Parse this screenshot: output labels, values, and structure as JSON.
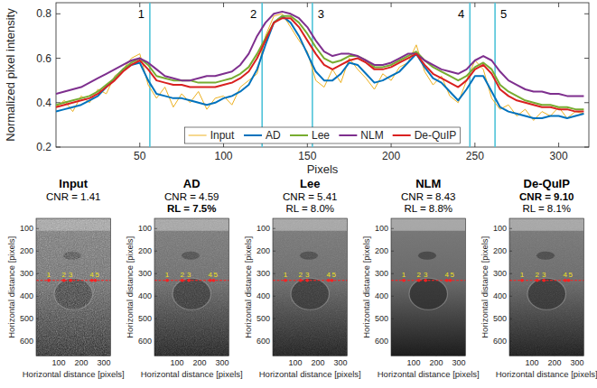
{
  "chart_data": [
    {
      "type": "line",
      "x_label": "Pixels",
      "y_label": "Normalized pixel intensity",
      "x": [
        0,
        5,
        10,
        15,
        20,
        25,
        30,
        35,
        40,
        45,
        50,
        55,
        60,
        65,
        70,
        75,
        80,
        85,
        90,
        95,
        100,
        105,
        110,
        115,
        120,
        125,
        130,
        135,
        140,
        145,
        150,
        155,
        160,
        165,
        170,
        175,
        180,
        185,
        190,
        195,
        200,
        205,
        210,
        215,
        220,
        225,
        230,
        235,
        240,
        245,
        250,
        255,
        260,
        265,
        270,
        275,
        280,
        285,
        290,
        295,
        300,
        305,
        310,
        315
      ],
      "xlim": [
        0,
        318
      ],
      "ylim": [
        0.2,
        0.85
      ],
      "xticks": [
        50,
        100,
        150,
        200,
        250,
        300
      ],
      "yticks": [
        0.2,
        0.4,
        0.6,
        0.8
      ],
      "legend": "bottom",
      "series": [
        {
          "name": "Input",
          "color": "#EDB120",
          "values": [
            0.38,
            0.41,
            0.36,
            0.43,
            0.4,
            0.46,
            0.44,
            0.52,
            0.55,
            0.6,
            0.62,
            0.48,
            0.42,
            0.47,
            0.38,
            0.44,
            0.4,
            0.45,
            0.37,
            0.42,
            0.43,
            0.39,
            0.47,
            0.5,
            0.53,
            0.7,
            0.79,
            0.8,
            0.74,
            0.68,
            0.63,
            0.5,
            0.47,
            0.55,
            0.49,
            0.6,
            0.55,
            0.51,
            0.46,
            0.53,
            0.5,
            0.56,
            0.58,
            0.66,
            0.54,
            0.48,
            0.52,
            0.43,
            0.4,
            0.5,
            0.59,
            0.55,
            0.42,
            0.37,
            0.39,
            0.34,
            0.37,
            0.32,
            0.36,
            0.34,
            0.38,
            0.33,
            0.36,
            0.35
          ]
        },
        {
          "name": "AD",
          "color": "#0072BD",
          "values": [
            0.36,
            0.37,
            0.38,
            0.39,
            0.41,
            0.43,
            0.47,
            0.51,
            0.55,
            0.57,
            0.58,
            0.5,
            0.44,
            0.43,
            0.42,
            0.42,
            0.41,
            0.4,
            0.39,
            0.4,
            0.42,
            0.43,
            0.45,
            0.48,
            0.55,
            0.66,
            0.76,
            0.79,
            0.76,
            0.7,
            0.62,
            0.54,
            0.5,
            0.5,
            0.53,
            0.58,
            0.57,
            0.53,
            0.49,
            0.5,
            0.52,
            0.54,
            0.58,
            0.62,
            0.56,
            0.51,
            0.49,
            0.45,
            0.41,
            0.46,
            0.52,
            0.52,
            0.45,
            0.38,
            0.36,
            0.35,
            0.34,
            0.33,
            0.33,
            0.34,
            0.34,
            0.33,
            0.34,
            0.35
          ]
        },
        {
          "name": "Lee",
          "color": "#77AC30",
          "values": [
            0.39,
            0.4,
            0.41,
            0.42,
            0.43,
            0.45,
            0.48,
            0.51,
            0.55,
            0.58,
            0.6,
            0.57,
            0.52,
            0.51,
            0.5,
            0.5,
            0.5,
            0.49,
            0.49,
            0.49,
            0.5,
            0.51,
            0.53,
            0.56,
            0.62,
            0.69,
            0.76,
            0.79,
            0.79,
            0.76,
            0.71,
            0.65,
            0.6,
            0.58,
            0.59,
            0.61,
            0.61,
            0.59,
            0.56,
            0.56,
            0.57,
            0.59,
            0.61,
            0.63,
            0.59,
            0.56,
            0.54,
            0.52,
            0.5,
            0.52,
            0.56,
            0.58,
            0.55,
            0.48,
            0.45,
            0.43,
            0.41,
            0.4,
            0.39,
            0.39,
            0.38,
            0.38,
            0.37,
            0.37
          ]
        },
        {
          "name": "NLM",
          "color": "#7E2F8E",
          "values": [
            0.44,
            0.45,
            0.46,
            0.47,
            0.49,
            0.51,
            0.53,
            0.55,
            0.57,
            0.59,
            0.6,
            0.58,
            0.55,
            0.52,
            0.51,
            0.5,
            0.5,
            0.51,
            0.52,
            0.52,
            0.53,
            0.54,
            0.57,
            0.62,
            0.7,
            0.76,
            0.8,
            0.81,
            0.8,
            0.78,
            0.74,
            0.68,
            0.63,
            0.61,
            0.62,
            0.62,
            0.61,
            0.59,
            0.57,
            0.57,
            0.58,
            0.6,
            0.62,
            0.62,
            0.59,
            0.57,
            0.55,
            0.54,
            0.53,
            0.55,
            0.59,
            0.61,
            0.59,
            0.54,
            0.5,
            0.48,
            0.46,
            0.45,
            0.45,
            0.44,
            0.44,
            0.43,
            0.43,
            0.43
          ]
        },
        {
          "name": "De-QuIP",
          "color": "#D92020",
          "values": [
            0.38,
            0.39,
            0.4,
            0.41,
            0.42,
            0.44,
            0.47,
            0.5,
            0.54,
            0.57,
            0.59,
            0.55,
            0.5,
            0.49,
            0.48,
            0.48,
            0.47,
            0.47,
            0.47,
            0.47,
            0.48,
            0.49,
            0.51,
            0.54,
            0.6,
            0.68,
            0.76,
            0.78,
            0.78,
            0.74,
            0.68,
            0.62,
            0.57,
            0.55,
            0.57,
            0.59,
            0.6,
            0.58,
            0.55,
            0.55,
            0.56,
            0.58,
            0.6,
            0.62,
            0.57,
            0.53,
            0.51,
            0.49,
            0.47,
            0.5,
            0.55,
            0.57,
            0.53,
            0.46,
            0.43,
            0.41,
            0.4,
            0.39,
            0.38,
            0.38,
            0.37,
            0.37,
            0.36,
            0.36
          ]
        }
      ],
      "vlines": [
        {
          "x": 56,
          "label": "1"
        },
        {
          "x": 123,
          "label": "2"
        },
        {
          "x": 153,
          "label": "3"
        },
        {
          "x": 247,
          "label": "4"
        },
        {
          "x": 262,
          "label": "5"
        }
      ]
    },
    {
      "type": "image",
      "title": "Input",
      "cnr": {
        "value": 1.41,
        "label": "CNR = 1.41"
      },
      "xlim": [
        0,
        330
      ],
      "ylim": [
        55,
        665
      ],
      "xticks": [
        100,
        200,
        300
      ],
      "yticks": [
        100,
        200,
        300,
        400,
        500,
        600
      ],
      "x_label": "Horizontal distance [pixels]",
      "y_label": "Horizontal distance [pixels]",
      "profile_row": 330
    },
    {
      "type": "image",
      "title": "AD",
      "cnr": {
        "value": 4.59,
        "label": "CNR = 4.59"
      },
      "rl": {
        "value": 7.5,
        "label": "RL = 7.5%"
      },
      "xlim": [
        0,
        330
      ],
      "ylim": [
        55,
        665
      ],
      "xticks": [
        100,
        200,
        300
      ],
      "yticks": [
        100,
        200,
        300,
        400,
        500,
        600
      ],
      "x_label": "Horizontal distance [pixels]",
      "y_label": "Horizontal distance [pixels]",
      "profile_row": 330
    },
    {
      "type": "image",
      "title": "Lee",
      "cnr": {
        "value": 5.41,
        "label": "CNR = 5.41"
      },
      "rl": {
        "value": 8.0,
        "label": "RL = 8.0%"
      },
      "xlim": [
        0,
        330
      ],
      "ylim": [
        55,
        665
      ],
      "xticks": [
        100,
        200,
        300
      ],
      "yticks": [
        100,
        200,
        300,
        400,
        500,
        600
      ],
      "x_label": "Horizontal distance [pixels]",
      "y_label": "Horizontal distance [pixels]",
      "profile_row": 330
    },
    {
      "type": "image",
      "title": "NLM",
      "cnr": {
        "value": 8.43,
        "label": "CNR = 8.43"
      },
      "rl": {
        "value": 8.8,
        "label": "RL = 8.8%"
      },
      "xlim": [
        0,
        330
      ],
      "ylim": [
        55,
        665
      ],
      "xticks": [
        100,
        200,
        300
      ],
      "yticks": [
        100,
        200,
        300,
        400,
        500,
        600
      ],
      "x_label": "Horizontal distance [pixels]",
      "y_label": "Horizontal distance [pixels]",
      "profile_row": 330
    },
    {
      "type": "image",
      "title": "De-QuIP",
      "cnr": {
        "value": 9.1,
        "label": "CNR = 9.10"
      },
      "rl": {
        "value": 8.1,
        "label": "RL = 8.1%"
      },
      "xlim": [
        0,
        330
      ],
      "ylim": [
        55,
        665
      ],
      "xticks": [
        100,
        200,
        300
      ],
      "yticks": [
        100,
        200,
        300,
        400,
        500,
        600
      ],
      "x_label": "Horizontal distance [pixels]",
      "y_label": "Horizontal distance [pixels]",
      "profile_row": 330
    }
  ]
}
